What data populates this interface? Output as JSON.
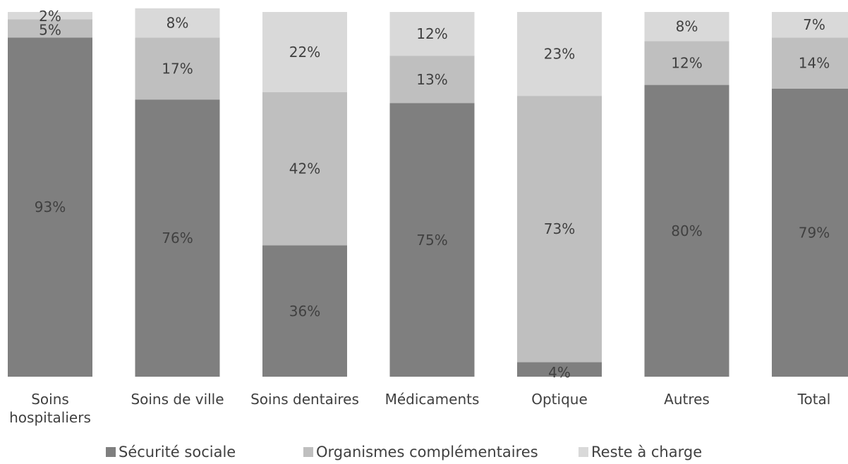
{
  "chart_data": {
    "type": "bar",
    "stacked": true,
    "percent": true,
    "title": "",
    "xlabel": "",
    "ylabel": "",
    "ylim": [
      0,
      100
    ],
    "grid": false,
    "legend_position": "bottom",
    "categories": [
      [
        "Soins",
        "hospitaliers"
      ],
      [
        "Soins de ville"
      ],
      [
        "Soins dentaires"
      ],
      [
        "Médicaments"
      ],
      [
        "Optique"
      ],
      [
        "Autres"
      ],
      [
        "Total"
      ]
    ],
    "series": [
      {
        "name": "Sécurité sociale",
        "color": "#7f7f7f",
        "values": [
          93,
          76,
          36,
          75,
          4,
          80,
          79
        ],
        "labels": [
          "93%",
          "76%",
          "36%",
          "75%",
          "4%",
          "80%",
          "79%"
        ]
      },
      {
        "name": "Organismes complémentaires",
        "color": "#bfbfbf",
        "values": [
          5,
          17,
          42,
          13,
          73,
          12,
          14
        ],
        "labels": [
          "5%",
          "17%",
          "42%",
          "13%",
          "73%",
          "12%",
          "14%"
        ]
      },
      {
        "name": "Reste à charge",
        "color": "#d9d9d9",
        "values": [
          2,
          8,
          22,
          12,
          23,
          8,
          7
        ],
        "labels": [
          "2%",
          "8%",
          "22%",
          "12%",
          "23%",
          "8%",
          "7%"
        ]
      }
    ]
  }
}
